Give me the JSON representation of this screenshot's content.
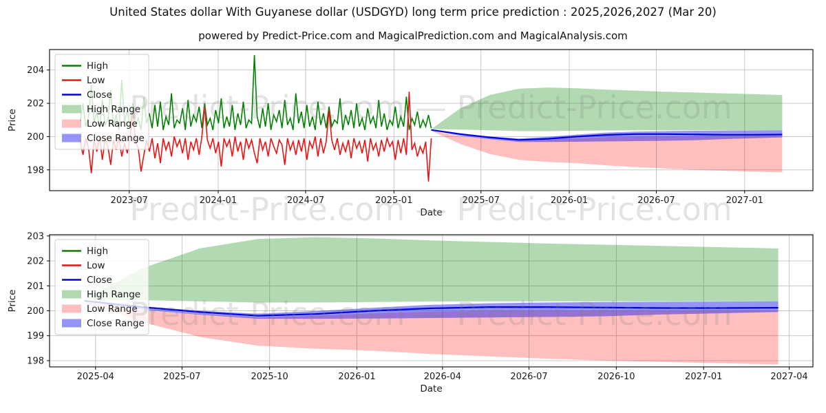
{
  "page": {
    "title": "United States dollar With Guyanese dollar (USDGYD) long term price prediction : 2025,2026,2027 (Mar 20)",
    "subtitle": "powered by Predict-Price.com and MagicalPrediction.com and MagicalAnalysis.com",
    "watermark": "Predict-Price.com — Predict-Price.com"
  },
  "colors": {
    "high": "#008000",
    "low": "#ee1111",
    "close": "#0000dd",
    "highRange": "rgba(0,128,0,0.30)",
    "lowRange": "rgba(255,0,0,0.25)",
    "closeRange": "rgba(20,20,235,0.45)",
    "grid": "#c0c0c0",
    "frame": "#000000",
    "tickText": "#1a1a1a",
    "watermark": "#808080"
  },
  "legend": [
    {
      "label": "High",
      "swatch": "line",
      "color": "high"
    },
    {
      "label": "Low",
      "swatch": "line",
      "color": "low"
    },
    {
      "label": "Close",
      "swatch": "line",
      "color": "close"
    },
    {
      "label": "High Range",
      "swatch": "patch",
      "color": "highRange"
    },
    {
      "label": "Low Range",
      "swatch": "patch",
      "color": "lowRange"
    },
    {
      "label": "Close Range",
      "swatch": "patch",
      "color": "closeRange"
    }
  ],
  "chart_data": [
    {
      "id": "top",
      "type": "line",
      "xlabel": "Date",
      "ylabel": "Price",
      "x_unit": "months since 2023-03-20",
      "xlim": [
        -2.1,
        50.1
      ],
      "ylim": [
        196.75,
        205.23
      ],
      "yticks": [
        198,
        200,
        202,
        204
      ],
      "xticks": [
        {
          "t": 3.35,
          "label": "2023-07"
        },
        {
          "t": 9.43,
          "label": "2024-01"
        },
        {
          "t": 15.41,
          "label": "2024-07"
        },
        {
          "t": 21.45,
          "label": "2025-01"
        },
        {
          "t": 27.4,
          "label": "2025-07"
        },
        {
          "t": 33.44,
          "label": "2026-01"
        },
        {
          "t": 39.39,
          "label": "2026-07"
        },
        {
          "t": 45.43,
          "label": "2027-01"
        }
      ],
      "historical": {
        "x_months": {
          "start": 0,
          "end": 24
        },
        "high": [
          200.9,
          202.0,
          200.6,
          201.2,
          203.1,
          200.8,
          201.5,
          200.5,
          202.2,
          200.7,
          201.0,
          202.8,
          200.6,
          201.3,
          200.4,
          203.4,
          200.9,
          201.6,
          200.5,
          202.0,
          200.7,
          201.1,
          200.4,
          202.4,
          200.8,
          201.4,
          200.5,
          201.9,
          200.6,
          202.1,
          200.4,
          201.2,
          200.7,
          202.6,
          200.5,
          201.0,
          200.8,
          201.7,
          200.4,
          202.2,
          200.6,
          201.3,
          200.9,
          201.8,
          200.5,
          202.0,
          200.7,
          201.1,
          200.4,
          201.6,
          200.8,
          202.3,
          200.5,
          201.2,
          200.6,
          201.9,
          200.4,
          201.4,
          200.7,
          202.1,
          200.5,
          201.0,
          200.8,
          204.9,
          201.2,
          200.5,
          201.7,
          200.6,
          202.0,
          200.4,
          201.3,
          200.9,
          201.6,
          200.5,
          202.2,
          200.7,
          201.1,
          200.4,
          202.6,
          200.8,
          201.5,
          200.5,
          201.9,
          200.6,
          201.2,
          200.4,
          202.1,
          200.7,
          201.4,
          200.5,
          201.8,
          200.6,
          201.0,
          200.8,
          202.3,
          200.4,
          201.3,
          200.7,
          201.6,
          200.5,
          202.0,
          200.6,
          201.1,
          200.4,
          201.7,
          200.8,
          201.2,
          200.5,
          202.2,
          200.6,
          201.4,
          200.4,
          201.0,
          200.7,
          201.8,
          200.5,
          201.2,
          200.6,
          202.4,
          200.4,
          201.1,
          200.7,
          201.5,
          200.5,
          201.0,
          200.6,
          201.3,
          200.5
        ],
        "low": [
          199.7,
          198.9,
          199.9,
          199.3,
          197.8,
          199.8,
          199.1,
          200.0,
          198.6,
          199.9,
          199.4,
          198.3,
          199.8,
          199.2,
          200.0,
          198.8,
          199.6,
          199.0,
          199.9,
          201.5,
          199.7,
          199.3,
          197.9,
          198.9,
          199.8,
          199.1,
          199.9,
          198.7,
          199.6,
          198.4,
          199.9,
          199.2,
          199.7,
          198.8,
          200.0,
          199.4,
          199.8,
          199.0,
          199.9,
          198.6,
          199.7,
          199.2,
          199.9,
          198.9,
          200.0,
          201.8,
          199.8,
          199.3,
          199.9,
          199.0,
          199.7,
          198.2,
          199.9,
          199.4,
          199.8,
          198.8,
          200.0,
          199.1,
          199.7,
          198.6,
          199.9,
          199.3,
          199.8,
          199.0,
          198.4,
          199.9,
          199.2,
          199.7,
          198.8,
          199.9,
          199.4,
          199.0,
          199.8,
          199.5,
          198.3,
          199.9,
          199.2,
          199.7,
          198.9,
          199.8,
          199.1,
          199.9,
          198.6,
          199.7,
          199.3,
          200.0,
          198.8,
          199.9,
          199.0,
          199.7,
          201.6,
          199.8,
          199.2,
          199.9,
          198.9,
          199.6,
          199.1,
          199.8,
          198.7,
          199.9,
          199.3,
          199.7,
          199.0,
          199.8,
          198.5,
          199.9,
          199.2,
          199.6,
          198.8,
          199.8,
          199.1,
          199.9,
          199.4,
          199.7,
          198.6,
          199.8,
          199.0,
          199.9,
          198.9,
          202.7,
          199.2,
          199.6,
          198.8,
          199.4,
          199.0,
          199.7,
          197.3,
          199.9
        ]
      },
      "prediction": {
        "t": [
          24,
          26,
          28,
          30,
          32,
          34,
          36,
          38,
          40,
          42,
          44,
          46,
          48
        ],
        "close": [
          200.4,
          200.15,
          199.95,
          199.8,
          199.87,
          200.0,
          200.1,
          200.15,
          200.15,
          200.13,
          200.11,
          200.11,
          200.12
        ],
        "high_max": [
          200.45,
          201.7,
          202.5,
          202.88,
          202.95,
          202.9,
          202.82,
          202.76,
          202.7,
          202.65,
          202.6,
          202.55,
          202.5
        ],
        "high_min": [
          200.45,
          200.42,
          200.38,
          200.33,
          200.33,
          200.35,
          200.37,
          200.38,
          200.38,
          200.38,
          200.38,
          200.38,
          200.38
        ],
        "low_max": [
          200.35,
          200.02,
          199.86,
          199.72,
          199.8,
          199.9,
          199.96,
          199.99,
          200.0,
          200.0,
          200.0,
          200.0,
          200.0
        ],
        "low_min": [
          200.35,
          199.55,
          198.95,
          198.6,
          198.48,
          198.4,
          198.27,
          198.17,
          198.08,
          198.0,
          197.95,
          197.9,
          197.85
        ],
        "close_max": [
          200.4,
          200.18,
          200.0,
          199.88,
          199.99,
          200.12,
          200.24,
          200.3,
          200.33,
          200.35,
          200.36,
          200.37,
          200.38
        ],
        "close_min": [
          200.4,
          200.04,
          199.84,
          199.68,
          199.68,
          199.69,
          199.71,
          199.73,
          199.75,
          199.78,
          199.85,
          199.9,
          199.95
        ]
      }
    },
    {
      "id": "bottom",
      "type": "line",
      "xlabel": "Date",
      "ylabel": "Price",
      "x_unit": "months since 2025-03-20",
      "xlim": [
        -1.2,
        25.2
      ],
      "ylim": [
        197.75,
        203.05
      ],
      "yticks": [
        198,
        199,
        200,
        201,
        202,
        203
      ],
      "xticks": [
        {
          "t": 0.39,
          "label": "2025-04"
        },
        {
          "t": 3.38,
          "label": "2025-07"
        },
        {
          "t": 6.41,
          "label": "2025-10"
        },
        {
          "t": 9.43,
          "label": "2026-01"
        },
        {
          "t": 12.39,
          "label": "2026-04"
        },
        {
          "t": 15.38,
          "label": "2026-07"
        },
        {
          "t": 18.4,
          "label": "2026-10"
        },
        {
          "t": 21.42,
          "label": "2027-01"
        },
        {
          "t": 24.38,
          "label": "2027-04"
        }
      ],
      "prediction": {
        "t": [
          0,
          2,
          4,
          6,
          8,
          10,
          12,
          14,
          16,
          18,
          20,
          22,
          24
        ],
        "close": [
          200.4,
          200.15,
          199.95,
          199.8,
          199.87,
          200.0,
          200.1,
          200.15,
          200.15,
          200.13,
          200.11,
          200.11,
          200.12
        ],
        "high_max": [
          200.45,
          201.7,
          202.5,
          202.88,
          202.95,
          202.9,
          202.82,
          202.76,
          202.7,
          202.65,
          202.6,
          202.55,
          202.5
        ],
        "high_min": [
          200.45,
          200.42,
          200.38,
          200.33,
          200.33,
          200.35,
          200.37,
          200.38,
          200.38,
          200.38,
          200.38,
          200.38,
          200.38
        ],
        "low_max": [
          200.35,
          200.02,
          199.86,
          199.72,
          199.8,
          199.9,
          199.96,
          199.99,
          200.0,
          200.0,
          200.0,
          200.0,
          200.0
        ],
        "low_min": [
          200.35,
          199.55,
          198.95,
          198.6,
          198.48,
          198.4,
          198.27,
          198.17,
          198.08,
          198.0,
          197.95,
          197.9,
          197.85
        ],
        "close_max": [
          200.4,
          200.18,
          200.0,
          199.88,
          199.99,
          200.12,
          200.24,
          200.3,
          200.33,
          200.35,
          200.36,
          200.37,
          200.38
        ],
        "close_min": [
          200.4,
          200.04,
          199.84,
          199.68,
          199.68,
          199.69,
          199.71,
          199.73,
          199.75,
          199.78,
          199.85,
          199.9,
          199.95
        ]
      }
    }
  ]
}
